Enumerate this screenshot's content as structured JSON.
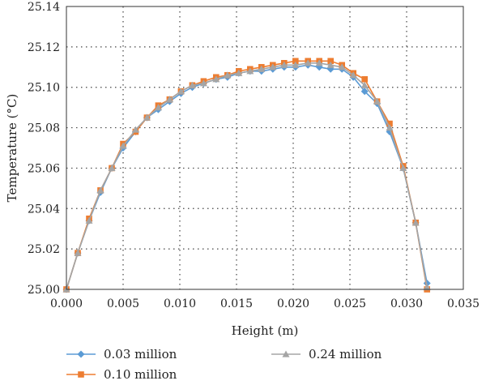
{
  "chart_data": {
    "type": "line",
    "xlabel": "Height (m)",
    "ylabel": "Temperature (°C)",
    "xlim": [
      0,
      0.035
    ],
    "ylim": [
      25.0,
      25.14
    ],
    "x_ticks": [
      "0.000",
      "0.005",
      "0.010",
      "0.015",
      "0.020",
      "0.025",
      "0.030",
      "0.035"
    ],
    "y_ticks": [
      "25.00",
      "25.02",
      "25.04",
      "25.06",
      "25.08",
      "25.10",
      "25.12",
      "25.14"
    ],
    "grid": true,
    "legend_position": "bottom",
    "series": [
      {
        "name": "0.03 million",
        "color": "#5b9bd5",
        "marker": "diamond",
        "x": [
          0.0,
          0.001,
          0.002,
          0.003,
          0.004,
          0.005,
          0.0061,
          0.0071,
          0.0081,
          0.0091,
          0.0101,
          0.0111,
          0.0121,
          0.0132,
          0.0142,
          0.0152,
          0.0162,
          0.0172,
          0.0182,
          0.0192,
          0.0202,
          0.0213,
          0.0223,
          0.0233,
          0.0243,
          0.0253,
          0.0263,
          0.0274,
          0.0285,
          0.0297,
          0.0308,
          0.0318
        ],
        "y": [
          25.0,
          25.018,
          25.034,
          25.048,
          25.06,
          25.07,
          25.078,
          25.085,
          25.089,
          25.093,
          25.097,
          25.1,
          25.102,
          25.104,
          25.105,
          25.107,
          25.108,
          25.108,
          25.109,
          25.11,
          25.11,
          25.111,
          25.11,
          25.109,
          25.109,
          25.105,
          25.098,
          25.092,
          25.078,
          25.06,
          25.033,
          25.003
        ]
      },
      {
        "name": "0.10 million",
        "color": "#ed7d31",
        "marker": "square",
        "x": [
          0.0,
          0.001,
          0.002,
          0.003,
          0.004,
          0.005,
          0.0061,
          0.0071,
          0.0081,
          0.0091,
          0.0101,
          0.0111,
          0.0121,
          0.0132,
          0.0142,
          0.0152,
          0.0162,
          0.0172,
          0.0182,
          0.0192,
          0.0202,
          0.0213,
          0.0223,
          0.0233,
          0.0243,
          0.0253,
          0.0263,
          0.0274,
          0.0285,
          0.0297,
          0.0308,
          0.0318
        ],
        "y": [
          25.0,
          25.018,
          25.035,
          25.049,
          25.06,
          25.072,
          25.078,
          25.085,
          25.091,
          25.094,
          25.098,
          25.101,
          25.103,
          25.105,
          25.106,
          25.108,
          25.109,
          25.11,
          25.111,
          25.112,
          25.113,
          25.113,
          25.113,
          25.113,
          25.111,
          25.107,
          25.104,
          25.093,
          25.082,
          25.061,
          25.033,
          25.0
        ]
      },
      {
        "name": "0.24 million",
        "color": "#a5a5a5",
        "marker": "triangle",
        "x": [
          0.0,
          0.001,
          0.002,
          0.003,
          0.004,
          0.005,
          0.0061,
          0.0071,
          0.0081,
          0.0091,
          0.0101,
          0.0111,
          0.0121,
          0.0132,
          0.0142,
          0.0152,
          0.0162,
          0.0172,
          0.0182,
          0.0192,
          0.0202,
          0.0213,
          0.0223,
          0.0233,
          0.0243,
          0.0253,
          0.0263,
          0.0274,
          0.0285,
          0.0297,
          0.0308,
          0.0318
        ],
        "y": [
          25.0,
          25.018,
          25.034,
          25.049,
          25.06,
          25.071,
          25.079,
          25.085,
          25.09,
          25.094,
          25.098,
          25.101,
          25.102,
          25.104,
          25.106,
          25.107,
          25.108,
          25.109,
          25.11,
          25.111,
          25.111,
          25.112,
          25.112,
          25.111,
          25.11,
          25.106,
          25.101,
          25.093,
          25.08,
          25.06,
          25.033,
          25.001
        ]
      }
    ]
  }
}
